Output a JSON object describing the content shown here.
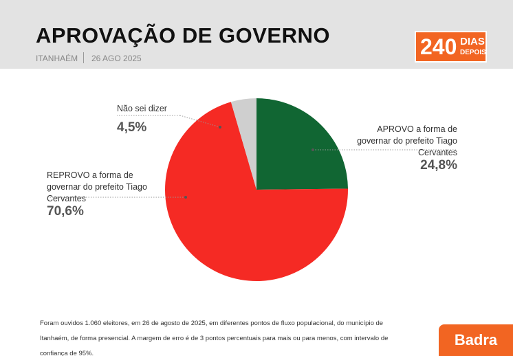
{
  "header": {
    "title": "APROVAÇÃO DE GOVERNO",
    "location": "ITANHAÉM",
    "date": "26 AGO 2025",
    "badge": {
      "number": "240",
      "word1": "DIAS",
      "word2": "DEPOIS"
    }
  },
  "chart_data": {
    "type": "pie",
    "categories": [
      "APROVO a forma de governar do prefeito Tiago Cervantes",
      "REPROVO a forma de governar do prefeito Tiago Cervantes",
      "Não sei dizer"
    ],
    "values": [
      24.8,
      70.6,
      4.5
    ],
    "value_labels": [
      "24,8%",
      "70,6%",
      "4,5%"
    ],
    "colors": [
      "#116633",
      "#f52a24",
      "#cfcfcf"
    ]
  },
  "footnote": "Foram ouvidos 1.060 eleitores, em 26 de agosto de 2025, em diferentes pontos de fluxo populacional, do município de Itanhaém, de forma presencial. A margem de erro é de 3 pontos percentuais para mais ou para menos, com intervalo de confiança de 95%.",
  "brand": "Badra"
}
